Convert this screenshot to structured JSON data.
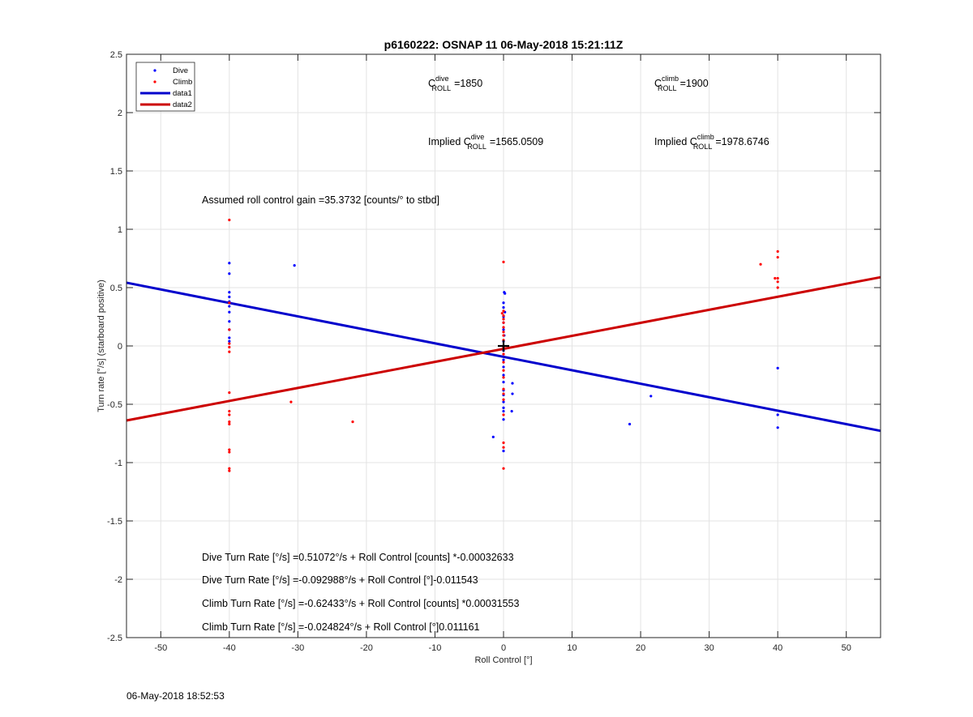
{
  "chart_data": {
    "type": "scatter",
    "title": "p6160222: OSNAP 11 06-May-2018 15:21:11Z",
    "xlabel": "Roll Control [°]",
    "ylabel": "Turn rate [°/s] (starboard positive)",
    "xlim": [
      -55,
      55
    ],
    "ylim": [
      -2.5,
      2.5
    ],
    "xticks": [
      -50,
      -40,
      -30,
      -20,
      -10,
      0,
      10,
      20,
      30,
      40,
      50
    ],
    "yticks": [
      -2.5,
      -2,
      -1.5,
      -1,
      -0.5,
      0,
      0.5,
      1,
      1.5,
      2,
      2.5
    ],
    "grid": true,
    "legend_position": "top-left",
    "series": [
      {
        "name": "Dive",
        "kind": "points",
        "color": "#0000ff",
        "points": [
          [
            -40,
            0.71
          ],
          [
            -40,
            0.62
          ],
          [
            -40,
            0.46
          ],
          [
            -40,
            0.42
          ],
          [
            -40,
            0.38
          ],
          [
            -40,
            0.34
          ],
          [
            -40,
            0.29
          ],
          [
            -40,
            0.21
          ],
          [
            -40,
            0.14
          ],
          [
            -40,
            0.07
          ],
          [
            -40,
            0.04
          ],
          [
            -30.5,
            0.69
          ],
          [
            0.1,
            0.46
          ],
          [
            0.2,
            0.45
          ],
          [
            0,
            0.37
          ],
          [
            0,
            0.33
          ],
          [
            0.2,
            0.29
          ],
          [
            0,
            0.25
          ],
          [
            0,
            0.2
          ],
          [
            0,
            0.14
          ],
          [
            0.1,
            0.09
          ],
          [
            0,
            0.04
          ],
          [
            0,
            -0.04
          ],
          [
            0,
            -0.12
          ],
          [
            0,
            -0.18
          ],
          [
            0,
            -0.25
          ],
          [
            0,
            -0.31
          ],
          [
            0,
            -0.38
          ],
          [
            0,
            -0.42
          ],
          [
            0,
            -0.48
          ],
          [
            0,
            -0.53
          ],
          [
            0,
            -0.56
          ],
          [
            0,
            -0.63
          ],
          [
            0,
            -0.9
          ],
          [
            1.3,
            -0.32
          ],
          [
            1.3,
            -0.41
          ],
          [
            1.2,
            -0.56
          ],
          [
            -1.5,
            -0.78
          ],
          [
            18.4,
            -0.67
          ],
          [
            21.5,
            -0.43
          ],
          [
            40,
            -0.19
          ],
          [
            40,
            -0.59
          ],
          [
            40,
            -0.7
          ]
        ]
      },
      {
        "name": "Climb",
        "kind": "points",
        "color": "#ff0000",
        "points": [
          [
            -40,
            1.08
          ],
          [
            -40,
            0.37
          ],
          [
            -40,
            0.14
          ],
          [
            -40,
            0.02
          ],
          [
            -40,
            -0.01
          ],
          [
            -40,
            -0.05
          ],
          [
            -40,
            -0.4
          ],
          [
            -40,
            -0.56
          ],
          [
            -40,
            -0.59
          ],
          [
            -40,
            -0.65
          ],
          [
            -40,
            -0.67
          ],
          [
            -40,
            -0.89
          ],
          [
            -40,
            -0.91
          ],
          [
            -40,
            -1.05
          ],
          [
            -40,
            -1.07
          ],
          [
            -31,
            -0.48
          ],
          [
            -22,
            -0.65
          ],
          [
            0,
            0.72
          ],
          [
            0,
            0.3
          ],
          [
            -0.2,
            0.28
          ],
          [
            0,
            0.26
          ],
          [
            0,
            0.23
          ],
          [
            0,
            0.2
          ],
          [
            0,
            0.16
          ],
          [
            0,
            0.12
          ],
          [
            0,
            0.09
          ],
          [
            0,
            0.05
          ],
          [
            0,
            -0.01
          ],
          [
            0,
            -0.07
          ],
          [
            0,
            -0.14
          ],
          [
            0,
            -0.21
          ],
          [
            0,
            -0.27
          ],
          [
            0,
            -0.37
          ],
          [
            0,
            -0.41
          ],
          [
            0,
            -0.46
          ],
          [
            0,
            -0.59
          ],
          [
            0,
            -0.83
          ],
          [
            0,
            -0.87
          ],
          [
            0,
            -1.05
          ],
          [
            37.5,
            0.7
          ],
          [
            40,
            0.81
          ],
          [
            40,
            0.76
          ],
          [
            40,
            0.58
          ],
          [
            39.6,
            0.58
          ],
          [
            40,
            0.55
          ],
          [
            40,
            0.5
          ]
        ]
      },
      {
        "name": "data1",
        "kind": "line",
        "color": "#0000cc",
        "x": [
          -55,
          55
        ],
        "y": [
          0.542,
          -0.728
        ]
      },
      {
        "name": "data2",
        "kind": "line",
        "color": "#cc0000",
        "x": [
          -55,
          55
        ],
        "y": [
          -0.639,
          0.589
        ]
      }
    ],
    "marker": {
      "x": 0,
      "y": 0,
      "symbol": "+"
    }
  },
  "annotations": {
    "c_dive_label": "C",
    "c_dive_sup": "dive",
    "c_dive_sub": "ROLL",
    "c_dive_value": "=1850",
    "c_climb_label": "C",
    "c_climb_sup": "climb",
    "c_climb_sub": "ROLL",
    "c_climb_value": "=1900",
    "implied_dive_label": "Implied C",
    "implied_dive_sup": "dive",
    "implied_dive_sub": "ROLL",
    "implied_dive_value": "=1565.0509",
    "implied_climb_label": "Implied C",
    "implied_climb_sup": "climb",
    "implied_climb_sub": "ROLL",
    "implied_climb_value": "=1978.6746",
    "gain": "Assumed roll control gain =35.3732 [counts/° to stbd]",
    "eq_dive_counts": "Dive Turn Rate [°/s] =0.51072°/s + Roll Control [counts] *-0.00032633",
    "eq_dive_deg": "Dive Turn Rate [°/s] =-0.092988°/s + Roll Control [°]-0.011543",
    "eq_climb_counts": "Climb Turn Rate [°/s] =-0.62433°/s + Roll Control [counts] *0.00031553",
    "eq_climb_deg": "Climb Turn Rate [°/s] =-0.024824°/s + Roll Control [°]0.011161"
  },
  "footer": {
    "timestamp": "06-May-2018 18:52:53"
  }
}
